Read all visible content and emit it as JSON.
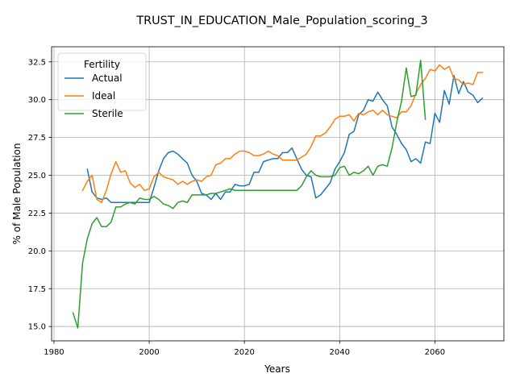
{
  "chart_data": {
    "type": "line",
    "title": "TRUST_IN_EDUCATION_Male_Population_scoring_3",
    "xlabel": "Years",
    "ylabel": "% of Male Population",
    "xlim": [
      1979.5,
      2074.5
    ],
    "ylim": [
      14.05,
      33.5
    ],
    "xticks": [
      1980,
      2000,
      2020,
      2040,
      2060
    ],
    "xtick_labels": [
      "1980",
      "2000",
      "2020",
      "2040",
      "2060"
    ],
    "yticks": [
      15.0,
      17.5,
      20.0,
      22.5,
      25.0,
      27.5,
      30.0,
      32.5
    ],
    "ytick_labels": [
      "15.0",
      "17.5",
      "20.0",
      "22.5",
      "25.0",
      "27.5",
      "30.0",
      "32.5"
    ],
    "grid": true,
    "legend": {
      "title": "Fertility",
      "placement": "upper-left"
    },
    "series": [
      {
        "name": "Actual",
        "color": "#1f77b4",
        "x": [
          1987,
          1988,
          1989,
          1990,
          1991,
          1992,
          1993,
          1994,
          1995,
          1996,
          1997,
          1998,
          1999,
          2000,
          2001,
          2002,
          2003,
          2004,
          2005,
          2006,
          2007,
          2008,
          2009,
          2010,
          2011,
          2012,
          2013,
          2014,
          2015,
          2016,
          2017,
          2018,
          2019,
          2020,
          2021,
          2022,
          2023,
          2024,
          2025,
          2026,
          2027,
          2028,
          2029,
          2030,
          2031,
          2032,
          2033,
          2034,
          2035,
          2036,
          2037,
          2038,
          2039,
          2040,
          2041,
          2042,
          2043,
          2044,
          2045,
          2046,
          2047,
          2048,
          2049,
          2050,
          2051,
          2052,
          2053,
          2054,
          2055,
          2056,
          2057,
          2058,
          2059,
          2060,
          2061,
          2062,
          2063,
          2064,
          2065,
          2066,
          2067,
          2068,
          2069,
          2070
        ],
        "y": [
          25.4,
          23.9,
          23.5,
          23.4,
          23.5,
          23.2,
          23.2,
          23.2,
          23.2,
          23.2,
          23.2,
          23.2,
          23.2,
          23.2,
          24.2,
          25.3,
          26.1,
          26.5,
          26.6,
          26.4,
          26.1,
          25.8,
          25.0,
          24.6,
          23.8,
          23.7,
          23.4,
          23.8,
          23.4,
          23.9,
          23.9,
          24.4,
          24.3,
          24.3,
          24.4,
          25.2,
          25.2,
          25.9,
          26.0,
          26.1,
          26.1,
          26.5,
          26.5,
          26.8,
          26.1,
          25.4,
          25.0,
          24.9,
          23.5,
          23.7,
          24.1,
          24.5,
          25.4,
          25.9,
          26.5,
          27.7,
          27.9,
          29.0,
          29.3,
          30.0,
          29.9,
          30.5,
          30.0,
          29.6,
          28.2,
          27.7,
          27.1,
          26.7,
          25.9,
          26.1,
          25.8,
          27.2,
          27.1,
          29.1,
          28.5,
          30.6,
          29.7,
          31.6,
          30.4,
          31.2,
          30.5,
          30.3,
          29.8,
          30.1
        ]
      },
      {
        "name": "Ideal",
        "color": "#ff7f0e",
        "x": [
          1986,
          1987,
          1988,
          1989,
          1990,
          1991,
          1992,
          1993,
          1994,
          1995,
          1996,
          1997,
          1998,
          1999,
          2000,
          2001,
          2002,
          2003,
          2004,
          2005,
          2006,
          2007,
          2008,
          2009,
          2010,
          2011,
          2012,
          2013,
          2014,
          2015,
          2016,
          2017,
          2018,
          2019,
          2020,
          2021,
          2022,
          2023,
          2024,
          2025,
          2026,
          2027,
          2028,
          2029,
          2030,
          2031,
          2032,
          2033,
          2034,
          2035,
          2036,
          2037,
          2038,
          2039,
          2040,
          2041,
          2042,
          2043,
          2044,
          2045,
          2046,
          2047,
          2048,
          2049,
          2050,
          2051,
          2052,
          2053,
          2054,
          2055,
          2056,
          2057,
          2058,
          2059,
          2060,
          2061,
          2062,
          2063,
          2064,
          2065,
          2066,
          2067,
          2068,
          2069,
          2070
        ],
        "y": [
          24.0,
          24.6,
          25.0,
          23.4,
          23.2,
          24.0,
          25.1,
          25.9,
          25.2,
          25.3,
          24.5,
          24.2,
          24.4,
          24.0,
          24.1,
          24.9,
          25.2,
          24.9,
          24.8,
          24.7,
          24.4,
          24.6,
          24.4,
          24.6,
          24.7,
          24.6,
          24.9,
          25.0,
          25.7,
          25.8,
          26.1,
          26.1,
          26.4,
          26.6,
          26.6,
          26.5,
          26.3,
          26.3,
          26.4,
          26.6,
          26.4,
          26.3,
          26.0,
          26.0,
          26.0,
          26.0,
          26.2,
          26.4,
          26.9,
          27.6,
          27.6,
          27.8,
          28.2,
          28.7,
          28.9,
          28.9,
          29.0,
          28.6,
          29.1,
          29.0,
          29.2,
          29.3,
          29.0,
          29.3,
          29.0,
          28.9,
          28.8,
          29.2,
          29.2,
          29.6,
          30.4,
          31.0,
          31.4,
          32.0,
          31.9,
          32.3,
          32.0,
          32.2,
          31.4,
          31.3,
          31.0,
          31.1,
          31.0,
          31.8,
          31.8
        ]
      },
      {
        "name": "Sterile",
        "color": "#2ca02c",
        "x": [
          1984,
          1985,
          1986,
          1987,
          1988,
          1989,
          1990,
          1991,
          1992,
          1993,
          1994,
          1995,
          1996,
          1997,
          1998,
          1999,
          2000,
          2001,
          2002,
          2003,
          2004,
          2005,
          2006,
          2007,
          2008,
          2009,
          2010,
          2011,
          2012,
          2013,
          2014,
          2015,
          2016,
          2017,
          2018,
          2019,
          2020,
          2021,
          2022,
          2023,
          2024,
          2025,
          2026,
          2027,
          2028,
          2029,
          2030,
          2031,
          2032,
          2033,
          2034,
          2035,
          2036,
          2037,
          2038,
          2039,
          2040,
          2041,
          2042,
          2043,
          2044,
          2045,
          2046,
          2047,
          2048,
          2049,
          2050,
          2051,
          2052,
          2053,
          2054,
          2055,
          2056,
          2057,
          2058
        ],
        "y": [
          15.9,
          14.9,
          19.2,
          20.8,
          21.8,
          22.2,
          21.6,
          21.6,
          21.9,
          22.9,
          22.9,
          23.1,
          23.2,
          23.1,
          23.5,
          23.4,
          23.4,
          23.6,
          23.4,
          23.1,
          23.0,
          22.8,
          23.2,
          23.3,
          23.2,
          23.7,
          23.7,
          23.7,
          23.7,
          23.8,
          23.8,
          23.9,
          24.0,
          24.1,
          24.0,
          24.0,
          24.0,
          24.0,
          24.0,
          24.0,
          24.0,
          24.0,
          24.0,
          24.0,
          24.0,
          24.0,
          24.0,
          24.0,
          24.3,
          24.9,
          25.3,
          25.0,
          24.9,
          24.9,
          24.9,
          25.0,
          25.5,
          25.6,
          25.0,
          25.2,
          25.1,
          25.3,
          25.6,
          25.0,
          25.6,
          25.7,
          25.6,
          26.8,
          28.5,
          29.9,
          32.1,
          30.2,
          30.3,
          32.6,
          28.7
        ]
      }
    ]
  }
}
